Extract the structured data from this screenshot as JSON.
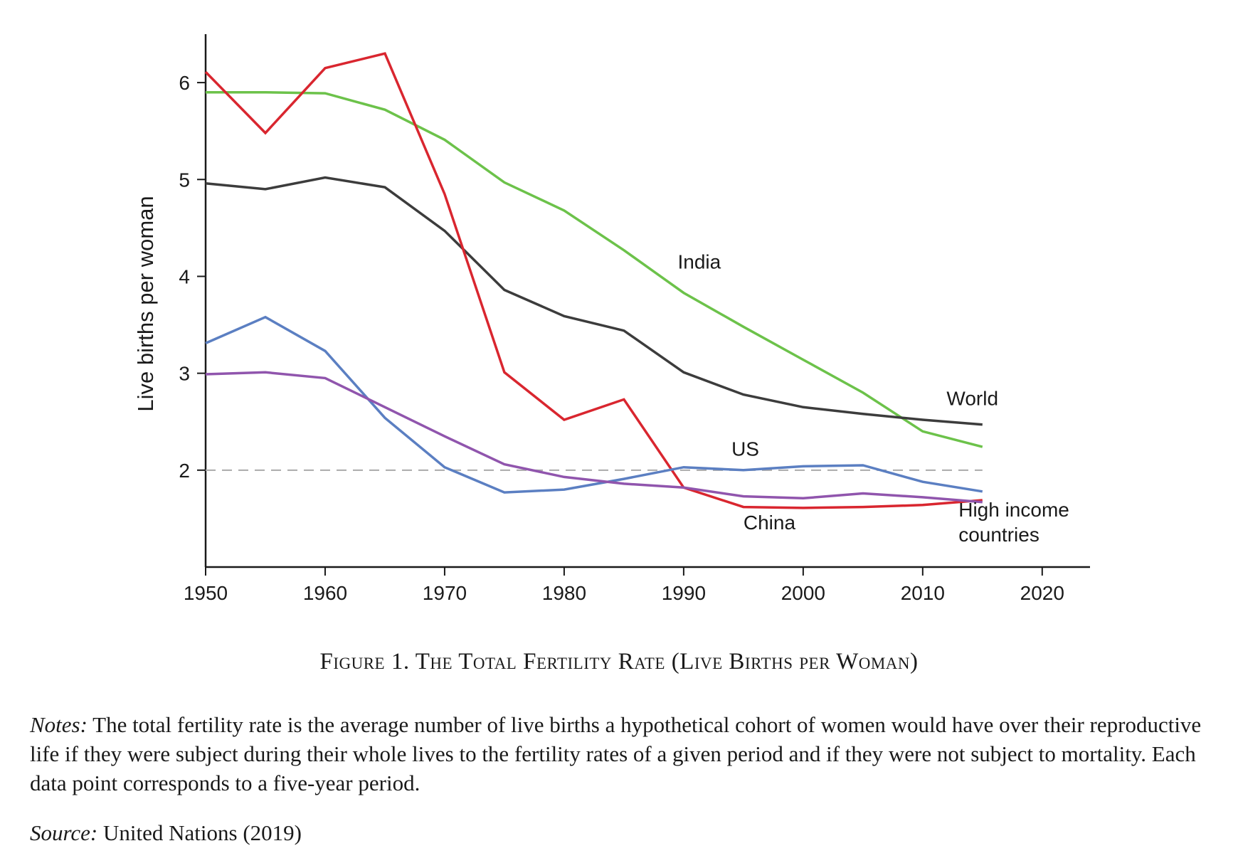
{
  "chart_data": {
    "type": "line",
    "title": "",
    "xlabel": "",
    "ylabel": "Live births per woman",
    "xlim": [
      1950,
      2024
    ],
    "ylim": [
      1,
      6.5
    ],
    "x_ticks": [
      1950,
      1960,
      1970,
      1980,
      1990,
      2000,
      2010,
      2020
    ],
    "y_ticks": [
      2,
      3,
      4,
      5,
      6
    ],
    "x": [
      1950,
      1955,
      1960,
      1965,
      1970,
      1975,
      1980,
      1985,
      1990,
      1995,
      2000,
      2005,
      2010,
      2015
    ],
    "reference_line": {
      "y": 2,
      "style": "dashed",
      "color": "#aaaaaa"
    },
    "grid": false,
    "series": [
      {
        "name": "India",
        "color": "#6cc24a",
        "values": [
          5.9,
          5.9,
          5.89,
          5.72,
          5.41,
          4.97,
          4.68,
          4.27,
          3.83,
          3.48,
          3.14,
          2.8,
          2.4,
          2.24
        ]
      },
      {
        "name": "World",
        "color": "#3c3c3c",
        "values": [
          4.96,
          4.9,
          5.02,
          4.92,
          4.47,
          3.86,
          3.59,
          3.44,
          3.01,
          2.78,
          2.65,
          2.58,
          2.52,
          2.47
        ]
      },
      {
        "name": "China",
        "color": "#d9262f",
        "values": [
          6.11,
          5.48,
          6.15,
          6.3,
          4.85,
          3.01,
          2.52,
          2.73,
          1.82,
          1.62,
          1.61,
          1.62,
          1.64,
          1.69
        ]
      },
      {
        "name": "US",
        "color": "#5b7fc2",
        "values": [
          3.31,
          3.58,
          3.23,
          2.54,
          2.03,
          1.77,
          1.8,
          1.91,
          2.03,
          2.0,
          2.04,
          2.05,
          1.88,
          1.78
        ]
      },
      {
        "name": "High income countries",
        "color": "#9055ad",
        "values": [
          2.99,
          3.01,
          2.95,
          2.65,
          2.35,
          2.06,
          1.93,
          1.86,
          1.82,
          1.73,
          1.71,
          1.76,
          1.72,
          1.67
        ]
      }
    ],
    "annotations": [
      {
        "series": "India",
        "text": "India",
        "x": 1989.5,
        "y": 4.08
      },
      {
        "series": "World",
        "text": "World",
        "x": 2012,
        "y": 2.67
      },
      {
        "series": "US",
        "text": "US",
        "x": 1994,
        "y": 2.15
      },
      {
        "series": "China",
        "text": "China",
        "x": 1995,
        "y": 1.39
      },
      {
        "series": "High income countries",
        "text": [
          "High income",
          "countries"
        ],
        "x": 2013,
        "y": 1.52
      }
    ]
  },
  "figure": {
    "caption": "Figure 1. The Total Fertility Rate (Live Births per Woman)",
    "notes_label": "Notes:",
    "notes_text": " The total fertility rate is the average number of live births a hypothetical cohort of women would have over their reproductive life if they were subject during their whole lives to the fertility rates of a given period and if they were not subject to mortality. Each data point corresponds to a five-year period.",
    "source_label": "Source:",
    "source_text": " United Nations (2019)"
  }
}
